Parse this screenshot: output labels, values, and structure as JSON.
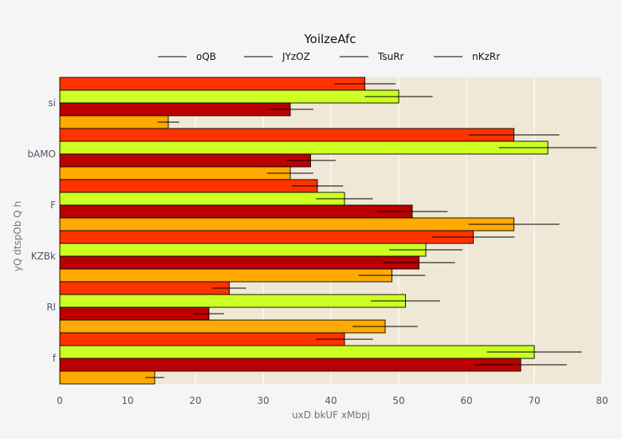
{
  "chart_data": {
    "type": "bar",
    "orientation": "horizontal",
    "title": "YoilzeAfc",
    "xlabel": "uxD bkUF xMbpj",
    "ylabel": "yQ dtspOb Q h",
    "xlim": [
      0,
      80
    ],
    "xticks": [
      0,
      10,
      20,
      30,
      40,
      50,
      60,
      70,
      80
    ],
    "grid": true,
    "legend_position": "top",
    "categories": [
      "si",
      "bAMO",
      "F",
      "KZBk",
      "Rl",
      "f"
    ],
    "series": [
      {
        "name": "oQB",
        "color": "#ff3300",
        "values": [
          45,
          67,
          38,
          61,
          25,
          42
        ],
        "errors": [
          4.5,
          6.7,
          3.8,
          6.1,
          2.5,
          4.2
        ]
      },
      {
        "name": "JYzOZ",
        "color": "#ccff22",
        "values": [
          50,
          72,
          42,
          54,
          51,
          70
        ],
        "errors": [
          5,
          7.2,
          4.2,
          5.4,
          5.1,
          7
        ]
      },
      {
        "name": "TsuRr",
        "color": "#bb0000",
        "values": [
          34,
          37,
          52,
          53,
          22,
          68
        ],
        "errors": [
          3.4,
          3.7,
          5.2,
          5.3,
          2.2,
          6.8
        ]
      },
      {
        "name": "nKzRr",
        "color": "#ffaa00",
        "values": [
          16,
          34,
          67,
          49,
          48,
          14
        ],
        "errors": [
          1.6,
          3.4,
          6.7,
          4.9,
          4.8,
          1.4
        ]
      }
    ]
  }
}
